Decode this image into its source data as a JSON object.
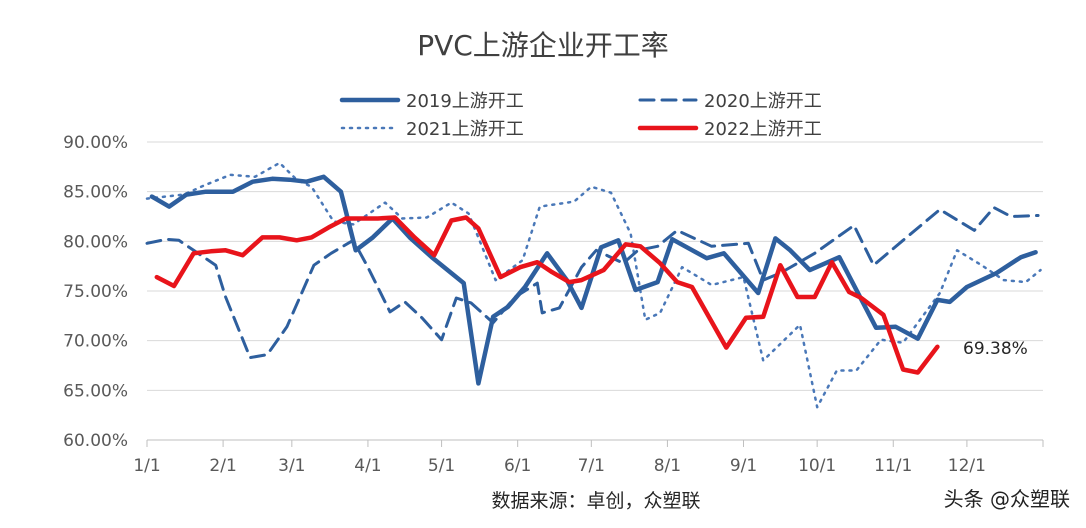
{
  "chart_data": {
    "type": "line",
    "title": "PVC上游企业开工率",
    "source_note": "数据来源：卓创，众塑联",
    "watermark": "头条 @众塑联",
    "xlabel": "",
    "ylabel": "",
    "x_ticks": [
      "1/1",
      "2/1",
      "3/1",
      "4/1",
      "5/1",
      "6/1",
      "7/1",
      "8/1",
      "9/1",
      "10/1",
      "11/1",
      "12/1"
    ],
    "y_ticks": [
      "60.00%",
      "65.00%",
      "70.00%",
      "75.00%",
      "80.00%",
      "85.00%",
      "90.00%"
    ],
    "ylim": [
      60,
      90
    ],
    "grid": true,
    "legend_position": "top",
    "annotation": {
      "text": "69.38%",
      "x": "11/19",
      "y": 69.38
    },
    "series": [
      {
        "name": "2019上游开工",
        "color": "#2e5f9e",
        "style": "solid",
        "points": [
          [
            "1/3",
            84.5
          ],
          [
            "1/10",
            83.5
          ],
          [
            "1/17",
            84.7
          ],
          [
            "1/25",
            85.0
          ],
          [
            "2/5",
            85.0
          ],
          [
            "2/13",
            86.0
          ],
          [
            "2/21",
            86.3
          ],
          [
            "2/28",
            86.2
          ],
          [
            "3/7",
            86.0
          ],
          [
            "3/14",
            86.5
          ],
          [
            "3/21",
            85.0
          ],
          [
            "3/27",
            79.1
          ],
          [
            "4/3",
            80.4
          ],
          [
            "4/11",
            82.3
          ],
          [
            "4/18",
            80.4
          ],
          [
            "4/27",
            78.4
          ],
          [
            "5/10",
            75.8
          ],
          [
            "5/16",
            65.7
          ],
          [
            "5/22",
            72.4
          ],
          [
            "5/28",
            73.4
          ],
          [
            "6/4",
            75.4
          ],
          [
            "6/13",
            78.8
          ],
          [
            "6/21",
            76.1
          ],
          [
            "6/27",
            73.3
          ],
          [
            "7/5",
            79.4
          ],
          [
            "7/12",
            80.1
          ],
          [
            "7/19",
            75.1
          ],
          [
            "7/28",
            75.9
          ],
          [
            "8/3",
            80.2
          ],
          [
            "8/17",
            78.3
          ],
          [
            "8/24",
            78.8
          ],
          [
            "9/7",
            74.8
          ],
          [
            "9/14",
            80.3
          ],
          [
            "9/20",
            79.1
          ],
          [
            "9/28",
            77.1
          ],
          [
            "10/10",
            78.4
          ],
          [
            "10/25",
            71.3
          ],
          [
            "11/2",
            71.4
          ],
          [
            "11/11",
            70.2
          ],
          [
            "11/19",
            74.1
          ],
          [
            "11/24",
            73.9
          ],
          [
            "12/1",
            75.4
          ],
          [
            "12/13",
            76.8
          ],
          [
            "12/23",
            78.4
          ],
          [
            "12/29",
            78.9
          ]
        ]
      },
      {
        "name": "2020上游开工",
        "color": "#2e5f9e",
        "style": "dashed",
        "points": [
          [
            "1/1",
            79.8
          ],
          [
            "1/9",
            80.2
          ],
          [
            "1/14",
            80.1
          ],
          [
            "1/20",
            79.1
          ],
          [
            "1/29",
            77.6
          ],
          [
            "2/2",
            74.4
          ],
          [
            "2/12",
            68.3
          ],
          [
            "2/19",
            68.6
          ],
          [
            "2/27",
            71.4
          ],
          [
            "3/10",
            77.6
          ],
          [
            "3/17",
            78.8
          ],
          [
            "3/26",
            80.1
          ],
          [
            "4/1",
            77.4
          ],
          [
            "4/10",
            72.9
          ],
          [
            "4/16",
            73.9
          ],
          [
            "4/23",
            72.3
          ],
          [
            "5/1",
            70.1
          ],
          [
            "5/7",
            74.3
          ],
          [
            "5/13",
            73.8
          ],
          [
            "5/22",
            71.8
          ],
          [
            "5/31",
            74.4
          ],
          [
            "6/9",
            75.8
          ],
          [
            "6/11",
            72.8
          ],
          [
            "6/18",
            73.3
          ],
          [
            "6/27",
            77.4
          ],
          [
            "7/3",
            79.1
          ],
          [
            "7/14",
            77.8
          ],
          [
            "7/20",
            79.1
          ],
          [
            "7/28",
            79.5
          ],
          [
            "8/5",
            81.1
          ],
          [
            "8/19",
            79.5
          ],
          [
            "9/3",
            79.8
          ],
          [
            "9/9",
            76.1
          ],
          [
            "9/16",
            76.8
          ],
          [
            "9/30",
            78.8
          ],
          [
            "10/16",
            81.6
          ],
          [
            "10/24",
            77.6
          ],
          [
            "11/5",
            80.1
          ],
          [
            "11/20",
            83.2
          ],
          [
            "12/4",
            81.1
          ],
          [
            "12/12",
            83.4
          ],
          [
            "12/19",
            82.5
          ],
          [
            "12/30",
            82.6
          ]
        ]
      },
      {
        "name": "2021上游开工",
        "color": "#4a78b8",
        "style": "dotted",
        "points": [
          [
            "1/1",
            84.3
          ],
          [
            "1/16",
            84.7
          ],
          [
            "1/24",
            85.6
          ],
          [
            "2/4",
            86.7
          ],
          [
            "2/14",
            86.5
          ],
          [
            "2/24",
            87.9
          ],
          [
            "3/3",
            86.2
          ],
          [
            "3/9",
            85.5
          ],
          [
            "3/18",
            82.0
          ],
          [
            "3/26",
            81.7
          ],
          [
            "4/8",
            83.9
          ],
          [
            "4/15",
            82.3
          ],
          [
            "4/25",
            82.4
          ],
          [
            "5/5",
            83.9
          ],
          [
            "5/12",
            82.8
          ],
          [
            "5/23",
            76.1
          ],
          [
            "6/3",
            78.1
          ],
          [
            "6/10",
            83.5
          ],
          [
            "6/24",
            84.0
          ],
          [
            "7/1",
            85.5
          ],
          [
            "7/9",
            84.9
          ],
          [
            "7/17",
            80.8
          ],
          [
            "7/23",
            72.1
          ],
          [
            "7/29",
            72.8
          ],
          [
            "8/7",
            77.4
          ],
          [
            "8/19",
            75.6
          ],
          [
            "9/1",
            76.4
          ],
          [
            "9/9",
            68.0
          ],
          [
            "9/24",
            71.6
          ],
          [
            "10/1",
            63.3
          ],
          [
            "10/9",
            67.0
          ],
          [
            "10/17",
            67.0
          ],
          [
            "10/27",
            70.1
          ],
          [
            "11/5",
            69.8
          ],
          [
            "11/20",
            74.8
          ],
          [
            "11/27",
            79.1
          ],
          [
            "12/7",
            77.6
          ],
          [
            "12/16",
            76.1
          ],
          [
            "12/25",
            75.9
          ],
          [
            "12/31",
            77.1
          ]
        ]
      },
      {
        "name": "2022上游开工",
        "color": "#e8141b",
        "style": "solid",
        "points": [
          [
            "1/5",
            76.4
          ],
          [
            "1/12",
            75.5
          ],
          [
            "1/20",
            78.8
          ],
          [
            "1/27",
            79.0
          ],
          [
            "2/2",
            79.1
          ],
          [
            "2/9",
            78.6
          ],
          [
            "2/17",
            80.4
          ],
          [
            "2/24",
            80.4
          ],
          [
            "3/3",
            80.1
          ],
          [
            "3/9",
            80.4
          ],
          [
            "3/16",
            81.4
          ],
          [
            "3/23",
            82.3
          ],
          [
            "3/29",
            82.3
          ],
          [
            "4/5",
            82.3
          ],
          [
            "4/12",
            82.4
          ],
          [
            "4/20",
            80.4
          ],
          [
            "4/28",
            78.6
          ],
          [
            "5/5",
            82.1
          ],
          [
            "5/11",
            82.4
          ],
          [
            "5/16",
            81.3
          ],
          [
            "5/25",
            76.4
          ],
          [
            "6/2",
            77.4
          ],
          [
            "6/9",
            77.9
          ],
          [
            "6/15",
            76.9
          ],
          [
            "6/22",
            75.9
          ],
          [
            "6/27",
            76.1
          ],
          [
            "7/6",
            77.1
          ],
          [
            "7/15",
            79.7
          ],
          [
            "7/21",
            79.5
          ],
          [
            "7/29",
            77.8
          ],
          [
            "8/5",
            75.9
          ],
          [
            "8/11",
            75.4
          ],
          [
            "8/25",
            69.3
          ],
          [
            "9/2",
            72.3
          ],
          [
            "9/9",
            72.4
          ],
          [
            "9/16",
            77.6
          ],
          [
            "9/23",
            74.4
          ],
          [
            "9/30",
            74.4
          ],
          [
            "10/7",
            77.9
          ],
          [
            "10/14",
            74.9
          ],
          [
            "10/19",
            74.3
          ],
          [
            "10/28",
            72.6
          ],
          [
            "11/5",
            67.1
          ],
          [
            "11/11",
            66.8
          ],
          [
            "11/19",
            69.38
          ]
        ]
      }
    ]
  }
}
